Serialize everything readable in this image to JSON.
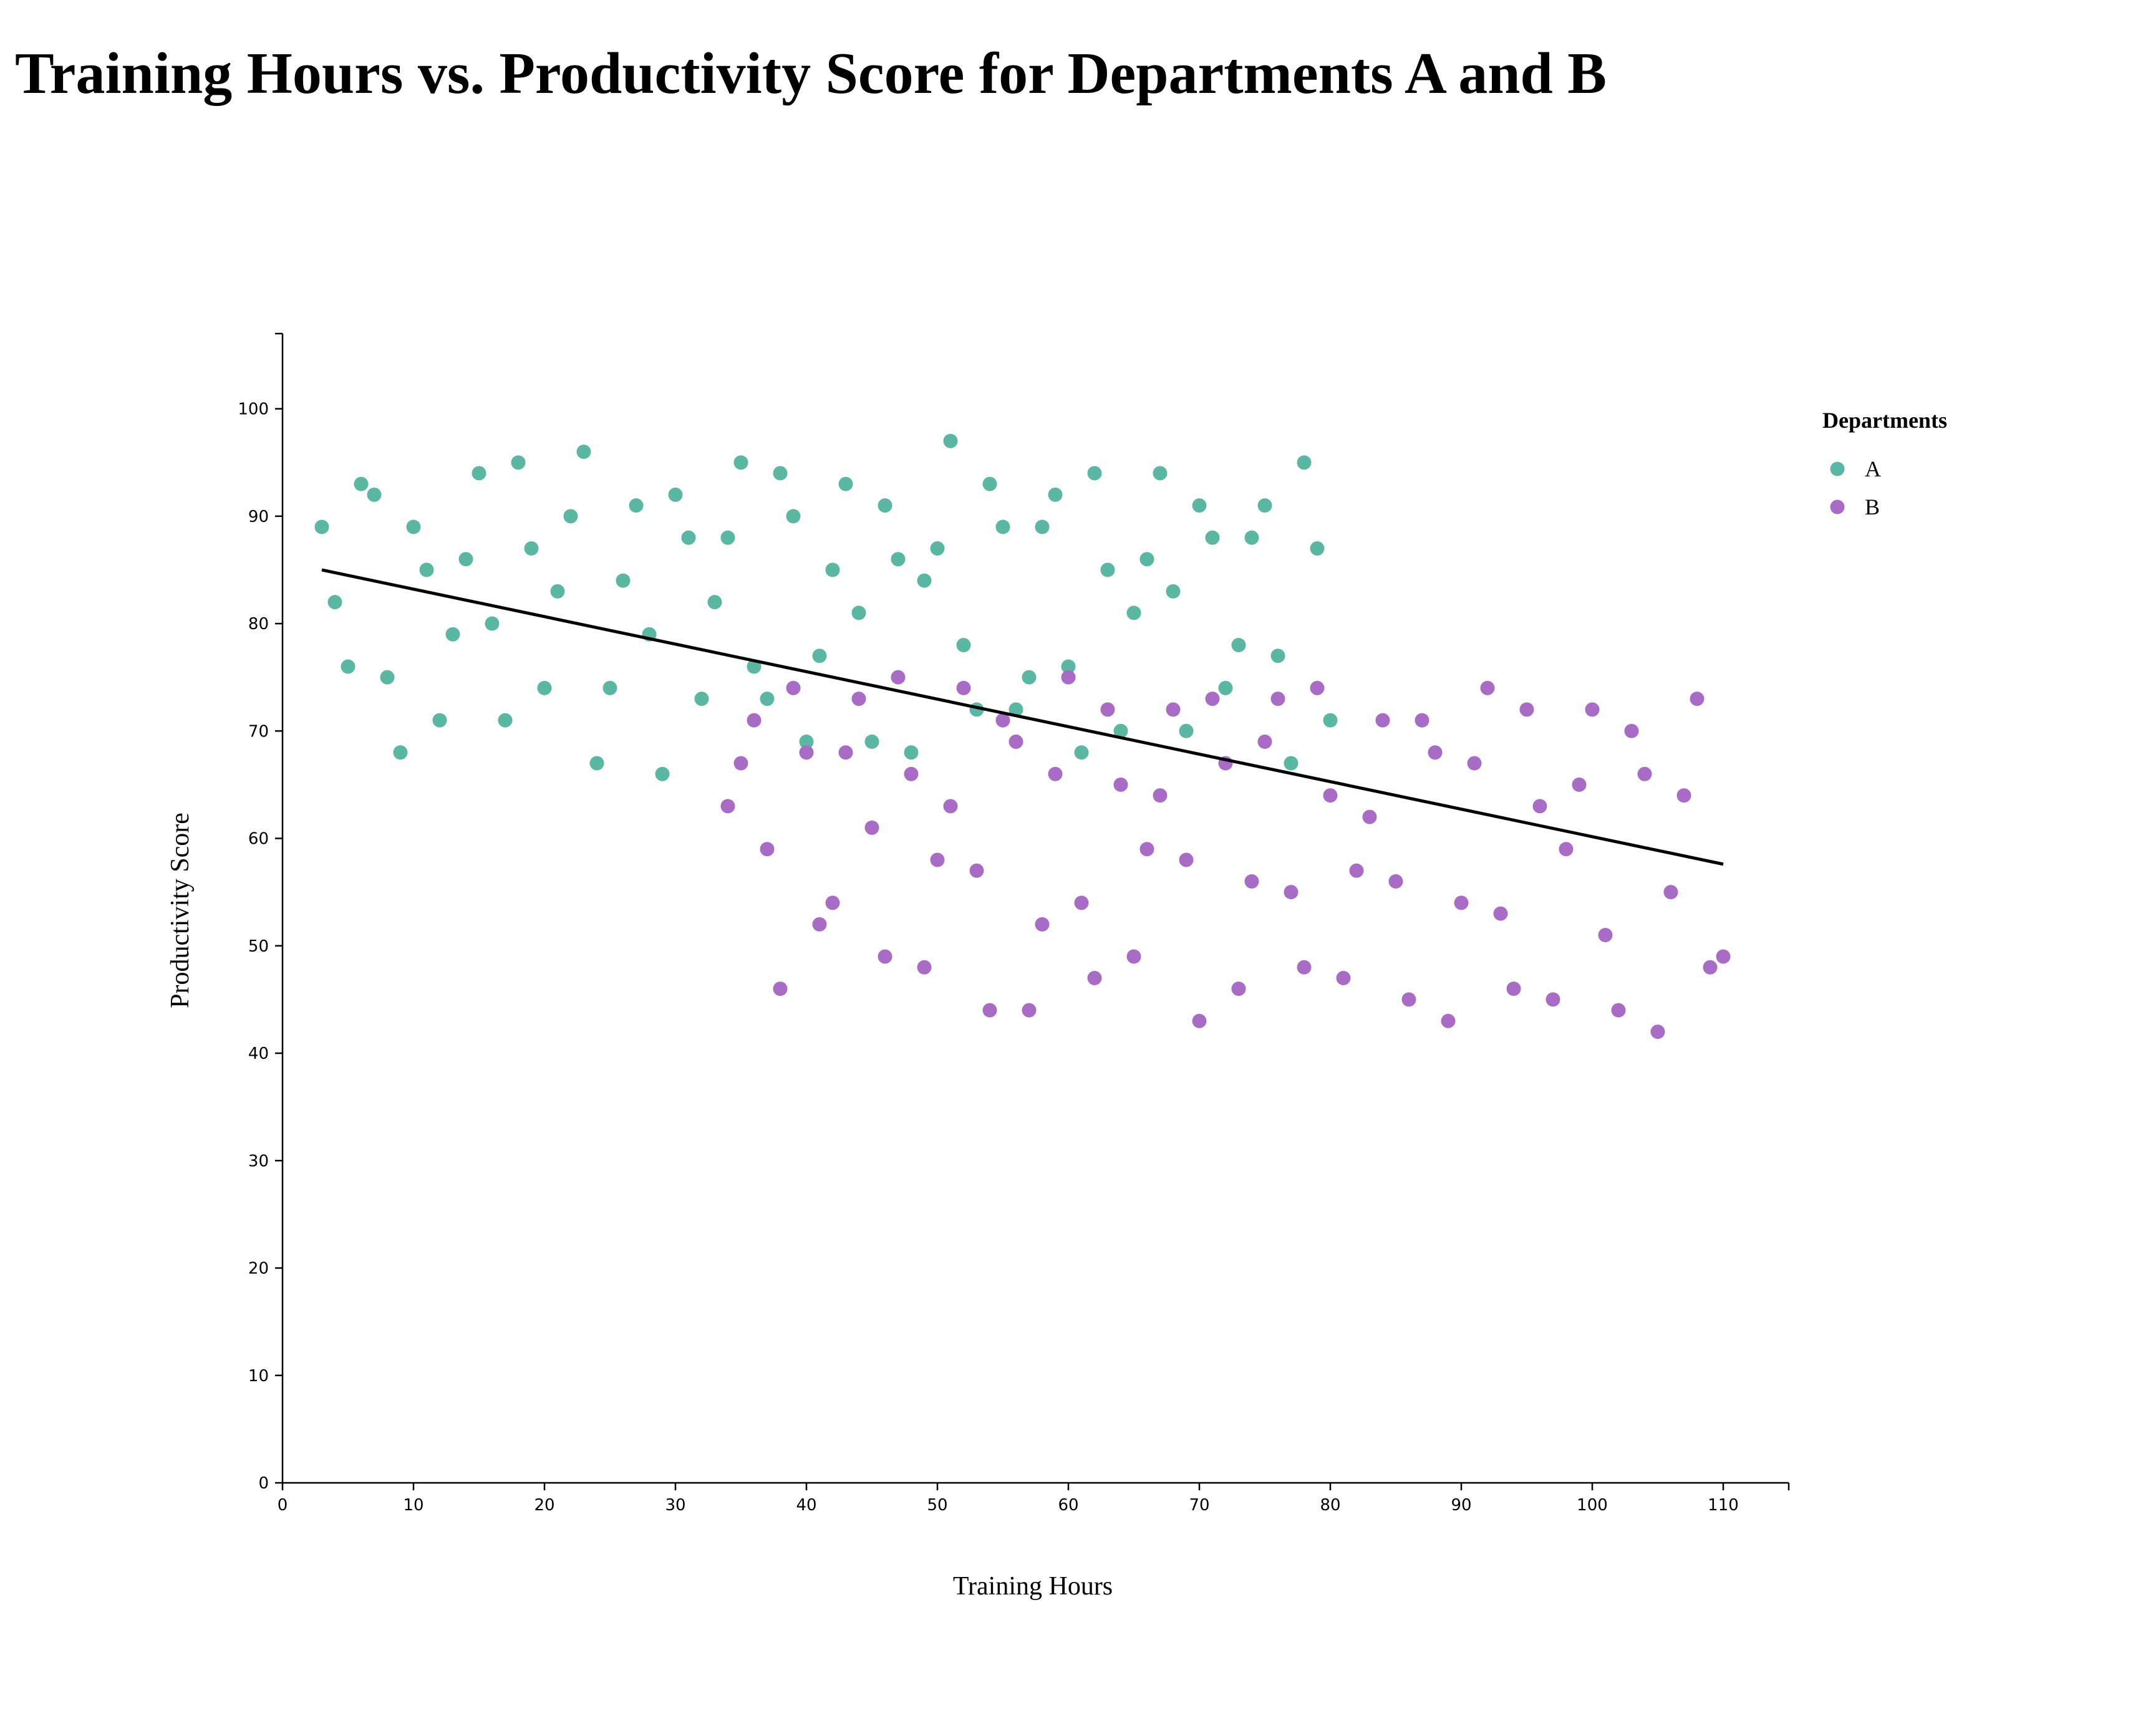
{
  "chart_data": {
    "type": "scatter",
    "title": "Training Hours vs. Productivity Score for Departments A and B",
    "xlabel": "Training Hours",
    "ylabel": "Productivity Score",
    "xlim": [
      0,
      115
    ],
    "ylim": [
      0,
      107
    ],
    "x_ticks": [
      0,
      10,
      20,
      30,
      40,
      50,
      60,
      70,
      80,
      90,
      100,
      110
    ],
    "y_ticks": [
      0,
      10,
      20,
      30,
      40,
      50,
      60,
      70,
      80,
      90,
      100
    ],
    "grid": false,
    "legend": {
      "title": "Departments",
      "position": "top-right"
    },
    "series": [
      {
        "name": "A",
        "color": "#5ab8a2",
        "points": [
          [
            3,
            89
          ],
          [
            4,
            82
          ],
          [
            5,
            76
          ],
          [
            6,
            93
          ],
          [
            7,
            92
          ],
          [
            8,
            75
          ],
          [
            9,
            68
          ],
          [
            10,
            89
          ],
          [
            11,
            85
          ],
          [
            12,
            71
          ],
          [
            13,
            79
          ],
          [
            14,
            86
          ],
          [
            15,
            94
          ],
          [
            16,
            80
          ],
          [
            17,
            71
          ],
          [
            18,
            95
          ],
          [
            19,
            87
          ],
          [
            20,
            74
          ],
          [
            21,
            83
          ],
          [
            22,
            90
          ],
          [
            23,
            96
          ],
          [
            24,
            67
          ],
          [
            25,
            74
          ],
          [
            26,
            84
          ],
          [
            27,
            91
          ],
          [
            28,
            79
          ],
          [
            29,
            66
          ],
          [
            30,
            92
          ],
          [
            31,
            88
          ],
          [
            32,
            73
          ],
          [
            33,
            82
          ],
          [
            34,
            88
          ],
          [
            35,
            95
          ],
          [
            36,
            76
          ],
          [
            37,
            73
          ],
          [
            38,
            94
          ],
          [
            39,
            90
          ],
          [
            40,
            69
          ],
          [
            41,
            77
          ],
          [
            42,
            85
          ],
          [
            43,
            93
          ],
          [
            44,
            81
          ],
          [
            45,
            69
          ],
          [
            46,
            91
          ],
          [
            47,
            86
          ],
          [
            48,
            68
          ],
          [
            49,
            84
          ],
          [
            50,
            87
          ],
          [
            51,
            97
          ],
          [
            52,
            78
          ],
          [
            53,
            72
          ],
          [
            54,
            93
          ],
          [
            55,
            89
          ],
          [
            56,
            72
          ],
          [
            57,
            75
          ],
          [
            58,
            89
          ],
          [
            59,
            92
          ],
          [
            60,
            76
          ],
          [
            61,
            68
          ],
          [
            62,
            94
          ],
          [
            63,
            85
          ],
          [
            64,
            70
          ],
          [
            65,
            81
          ],
          [
            66,
            86
          ],
          [
            67,
            94
          ],
          [
            68,
            83
          ],
          [
            69,
            70
          ],
          [
            70,
            91
          ],
          [
            71,
            88
          ],
          [
            72,
            74
          ],
          [
            73,
            78
          ],
          [
            74,
            88
          ],
          [
            75,
            91
          ],
          [
            76,
            77
          ],
          [
            77,
            67
          ],
          [
            78,
            95
          ],
          [
            79,
            87
          ],
          [
            80,
            71
          ]
        ]
      },
      {
        "name": "B",
        "color": "#a86cc6",
        "points": [
          [
            34,
            63
          ],
          [
            35,
            67
          ],
          [
            36,
            71
          ],
          [
            37,
            59
          ],
          [
            38,
            46
          ],
          [
            39,
            74
          ],
          [
            40,
            68
          ],
          [
            41,
            52
          ],
          [
            42,
            54
          ],
          [
            43,
            68
          ],
          [
            44,
            73
          ],
          [
            45,
            61
          ],
          [
            46,
            49
          ],
          [
            47,
            75
          ],
          [
            48,
            66
          ],
          [
            49,
            48
          ],
          [
            50,
            58
          ],
          [
            51,
            63
          ],
          [
            52,
            74
          ],
          [
            53,
            57
          ],
          [
            54,
            44
          ],
          [
            55,
            71
          ],
          [
            56,
            69
          ],
          [
            57,
            44
          ],
          [
            58,
            52
          ],
          [
            59,
            66
          ],
          [
            60,
            75
          ],
          [
            61,
            54
          ],
          [
            62,
            47
          ],
          [
            63,
            72
          ],
          [
            64,
            65
          ],
          [
            65,
            49
          ],
          [
            66,
            59
          ],
          [
            67,
            64
          ],
          [
            68,
            72
          ],
          [
            69,
            58
          ],
          [
            70,
            43
          ],
          [
            71,
            73
          ],
          [
            72,
            67
          ],
          [
            73,
            46
          ],
          [
            74,
            56
          ],
          [
            75,
            69
          ],
          [
            76,
            73
          ],
          [
            77,
            55
          ],
          [
            78,
            48
          ],
          [
            79,
            74
          ],
          [
            80,
            64
          ],
          [
            81,
            47
          ],
          [
            82,
            57
          ],
          [
            83,
            62
          ],
          [
            84,
            71
          ],
          [
            85,
            56
          ],
          [
            86,
            45
          ],
          [
            87,
            71
          ],
          [
            88,
            68
          ],
          [
            89,
            43
          ],
          [
            90,
            54
          ],
          [
            91,
            67
          ],
          [
            92,
            74
          ],
          [
            93,
            53
          ],
          [
            94,
            46
          ],
          [
            95,
            72
          ],
          [
            96,
            63
          ],
          [
            97,
            45
          ],
          [
            98,
            59
          ],
          [
            99,
            65
          ],
          [
            100,
            72
          ],
          [
            101,
            51
          ],
          [
            102,
            44
          ],
          [
            103,
            70
          ],
          [
            104,
            66
          ],
          [
            105,
            42
          ],
          [
            106,
            55
          ],
          [
            107,
            64
          ],
          [
            108,
            73
          ],
          [
            109,
            48
          ],
          [
            110,
            49
          ]
        ]
      }
    ],
    "trendline": {
      "color": "#000000",
      "x": [
        3,
        110
      ],
      "y": [
        85,
        57.6
      ]
    }
  }
}
